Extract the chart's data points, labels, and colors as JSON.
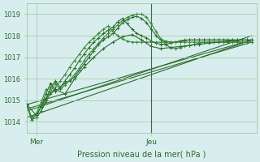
{
  "title": "",
  "xlabel": "Pression niveau de la mer( hPa )",
  "ylabel": "",
  "bg_color": "#d8eeee",
  "grid_color": "#aaccaa",
  "line_color_dark": "#2d6b2d",
  "line_color_medium": "#3a8a3a",
  "ylim": [
    1013.5,
    1019.5
  ],
  "xlim": [
    0,
    48
  ],
  "yticks": [
    1014,
    1015,
    1016,
    1017,
    1018,
    1019
  ],
  "xtick_mer": 2,
  "xtick_jeu": 26,
  "xtick_labels": [
    "Mer",
    "Jeu"
  ],
  "vline_x": 26,
  "series": [
    {
      "x": [
        0,
        1,
        2,
        3,
        4,
        5,
        6,
        7,
        8,
        9,
        10,
        11,
        12,
        13,
        14,
        15,
        16,
        17,
        18,
        19,
        20,
        21,
        22,
        23,
        24,
        25,
        26,
        27,
        28,
        29,
        30,
        31,
        32,
        33,
        34,
        35,
        36,
        37,
        38,
        39,
        40,
        41,
        42,
        43,
        44,
        45,
        46,
        47
      ],
      "y": [
        1014.8,
        1014.1,
        1014.2,
        1014.5,
        1015.0,
        1015.6,
        1015.9,
        1015.6,
        1015.8,
        1015.9,
        1016.1,
        1016.4,
        1016.7,
        1017.0,
        1017.3,
        1017.6,
        1017.8,
        1017.95,
        1018.1,
        1018.35,
        1018.6,
        1018.75,
        1018.85,
        1018.9,
        1018.8,
        1018.6,
        1018.3,
        1018.0,
        1017.8,
        1017.75,
        1017.7,
        1017.7,
        1017.75,
        1017.8,
        1017.8,
        1017.8,
        1017.8,
        1017.8,
        1017.8,
        1017.8,
        1017.8,
        1017.8,
        1017.8,
        1017.8,
        1017.8,
        1017.8,
        1017.8,
        1017.8
      ]
    },
    {
      "x": [
        0,
        1,
        2,
        3,
        4,
        5,
        6,
        7,
        8,
        9,
        10,
        11,
        12,
        13,
        14,
        15,
        16,
        17,
        18,
        19,
        20,
        21,
        22,
        23,
        24,
        25,
        26,
        27,
        28,
        29,
        30,
        31,
        32,
        33,
        34,
        35,
        36,
        37,
        38,
        39,
        40,
        41,
        42,
        43,
        44,
        45,
        46,
        47
      ],
      "y": [
        1014.8,
        1014.1,
        1014.2,
        1014.5,
        1014.9,
        1015.4,
        1015.8,
        1015.5,
        1015.7,
        1015.95,
        1016.2,
        1016.5,
        1016.85,
        1017.15,
        1017.4,
        1017.65,
        1017.9,
        1018.1,
        1018.3,
        1018.5,
        1018.7,
        1018.85,
        1018.95,
        1019.0,
        1019.0,
        1018.85,
        1018.55,
        1018.2,
        1017.85,
        1017.6,
        1017.45,
        1017.4,
        1017.45,
        1017.5,
        1017.55,
        1017.6,
        1017.65,
        1017.7,
        1017.7,
        1017.7,
        1017.7,
        1017.7,
        1017.7,
        1017.7,
        1017.7,
        1017.7,
        1017.7,
        1017.7
      ]
    },
    {
      "x": [
        0,
        1,
        2,
        3,
        4,
        5,
        6,
        7,
        8,
        9,
        10,
        11,
        12,
        13,
        14,
        15,
        16,
        17,
        18,
        19,
        20,
        21,
        22,
        23,
        24,
        25,
        26,
        27,
        28,
        29,
        30,
        31,
        32,
        33,
        34,
        35,
        36,
        37,
        38,
        39,
        40,
        41,
        42,
        43,
        44,
        45,
        46,
        47
      ],
      "y": [
        1014.8,
        1014.2,
        1014.3,
        1014.7,
        1015.3,
        1015.8,
        1015.4,
        1015.6,
        1015.9,
        1016.2,
        1016.5,
        1016.85,
        1017.15,
        1017.45,
        1017.7,
        1017.9,
        1018.1,
        1018.25,
        1018.4,
        1018.65,
        1018.8,
        1018.55,
        1018.3,
        1018.1,
        1018.0,
        1017.9,
        1017.75,
        1017.65,
        1017.6,
        1017.6,
        1017.65,
        1017.7,
        1017.75,
        1017.78,
        1017.8,
        1017.8,
        1017.8,
        1017.8,
        1017.8,
        1017.8,
        1017.8,
        1017.8,
        1017.8,
        1017.8,
        1017.8,
        1017.8,
        1017.8,
        1017.8
      ]
    },
    {
      "x": [
        0,
        1,
        2,
        3,
        4,
        5,
        6,
        7,
        8,
        9,
        10,
        11,
        12,
        13,
        14,
        15,
        16,
        17,
        18,
        19,
        20,
        21,
        22,
        23,
        24,
        25,
        26,
        27,
        28,
        29,
        30,
        31,
        32,
        33,
        34,
        35,
        36,
        37,
        38,
        39,
        40,
        41,
        42,
        43,
        44,
        45,
        46,
        47
      ],
      "y": [
        1014.8,
        1014.2,
        1014.4,
        1014.9,
        1015.5,
        1015.3,
        1015.6,
        1015.9,
        1016.2,
        1016.55,
        1016.85,
        1017.15,
        1017.45,
        1017.7,
        1017.9,
        1018.1,
        1018.3,
        1018.45,
        1018.2,
        1018.0,
        1017.85,
        1017.75,
        1017.7,
        1017.7,
        1017.7,
        1017.7,
        1017.7,
        1017.7,
        1017.7,
        1017.7,
        1017.7,
        1017.7,
        1017.7,
        1017.7,
        1017.7,
        1017.7,
        1017.7,
        1017.7,
        1017.7,
        1017.7,
        1017.7,
        1017.7,
        1017.7,
        1017.7,
        1017.7,
        1017.7,
        1017.7,
        1017.7
      ]
    },
    {
      "x": [
        0,
        2,
        4,
        6,
        8,
        10,
        12,
        14,
        16,
        18,
        20,
        22,
        24,
        26,
        28,
        30,
        32,
        34,
        36,
        38,
        40,
        42,
        44,
        46,
        47
      ],
      "y": [
        1014.8,
        1014.3,
        1015.1,
        1015.5,
        1015.3,
        1016.0,
        1016.55,
        1017.0,
        1017.4,
        1017.7,
        1017.95,
        1018.05,
        1017.8,
        1017.5,
        1017.4,
        1017.45,
        1017.5,
        1017.55,
        1017.6,
        1017.65,
        1017.7,
        1017.75,
        1017.78,
        1017.8,
        1017.8
      ]
    }
  ],
  "straight_lines": [
    {
      "x0": 0,
      "y0": 1014.2,
      "x1": 47,
      "y1": 1017.8
    },
    {
      "x0": 0,
      "y0": 1014.5,
      "x1": 47,
      "y1": 1018.0
    },
    {
      "x0": 0,
      "y0": 1014.6,
      "x1": 47,
      "y1": 1017.7
    },
    {
      "x0": 0,
      "y0": 1014.8,
      "x1": 47,
      "y1": 1017.8
    }
  ]
}
